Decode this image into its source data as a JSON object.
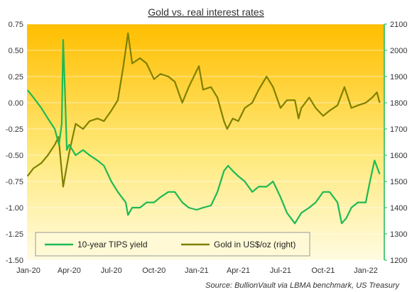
{
  "chart_data": {
    "type": "line",
    "title": "Gold vs. real interest rates",
    "source": "Source: BullionVault via LBMA benchmark, US Treasury",
    "x_ticks": [
      "Jan-20",
      "Apr-20",
      "Jul-20",
      "Oct-20",
      "Jan-21",
      "Apr-21",
      "Jul-21",
      "Oct-21",
      "Jan-22"
    ],
    "y_left": {
      "ticks": [
        "0.75",
        "0.50",
        "0.25",
        "0.00",
        "-0.25",
        "-0.50",
        "-0.75",
        "-1.00",
        "-1.25",
        "-1.50"
      ],
      "ylim": [
        -1.5,
        0.75
      ]
    },
    "y_right": {
      "ticks": [
        "2100",
        "2000",
        "1900",
        "1800",
        "1700",
        "1600",
        "1500",
        "1400",
        "1300",
        "1200"
      ],
      "ylim": [
        1200,
        2100
      ]
    },
    "legend": {
      "placement": "bottom-left"
    },
    "series": [
      {
        "name": "10-year TIPS yield",
        "axis": "left",
        "color": "#1db954",
        "x": [
          "2020-01-02",
          "2020-01-15",
          "2020-02-01",
          "2020-02-15",
          "2020-03-01",
          "2020-03-10",
          "2020-03-16",
          "2020-03-19",
          "2020-03-23",
          "2020-03-27",
          "2020-04-01",
          "2020-04-15",
          "2020-05-01",
          "2020-05-15",
          "2020-06-01",
          "2020-06-15",
          "2020-07-01",
          "2020-07-15",
          "2020-08-01",
          "2020-08-06",
          "2020-08-15",
          "2020-09-01",
          "2020-09-15",
          "2020-10-01",
          "2020-10-15",
          "2020-11-01",
          "2020-11-15",
          "2020-12-01",
          "2020-12-15",
          "2021-01-01",
          "2021-01-15",
          "2021-02-01",
          "2021-02-15",
          "2021-03-01",
          "2021-03-10",
          "2021-03-20",
          "2021-04-01",
          "2021-04-15",
          "2021-05-01",
          "2021-05-15",
          "2021-06-01",
          "2021-06-15",
          "2021-07-01",
          "2021-07-15",
          "2021-08-01",
          "2021-08-15",
          "2021-09-01",
          "2021-09-15",
          "2021-10-01",
          "2021-10-15",
          "2021-11-01",
          "2021-11-10",
          "2021-11-20",
          "2021-12-01",
          "2021-12-15",
          "2022-01-01",
          "2022-01-10",
          "2022-01-20",
          "2022-01-31"
        ],
        "values": [
          0.12,
          0.05,
          -0.05,
          -0.15,
          -0.25,
          -0.4,
          -0.2,
          0.6,
          0.1,
          -0.45,
          -0.4,
          -0.5,
          -0.45,
          -0.5,
          -0.55,
          -0.6,
          -0.75,
          -0.85,
          -0.95,
          -1.07,
          -1.0,
          -1.0,
          -0.95,
          -0.95,
          -0.9,
          -0.85,
          -0.85,
          -0.95,
          -1.0,
          -1.02,
          -1.0,
          -0.98,
          -0.85,
          -0.65,
          -0.6,
          -0.65,
          -0.7,
          -0.75,
          -0.85,
          -0.8,
          -0.8,
          -0.75,
          -0.9,
          -1.05,
          -1.15,
          -1.05,
          -1.0,
          -0.95,
          -0.85,
          -0.85,
          -0.95,
          -1.15,
          -1.1,
          -1.0,
          -0.95,
          -0.95,
          -0.75,
          -0.55,
          -0.68
        ]
      },
      {
        "name": "Gold in US$/oz (right)",
        "axis": "right",
        "color": "#808000",
        "x": [
          "2020-01-02",
          "2020-01-15",
          "2020-02-01",
          "2020-02-15",
          "2020-03-01",
          "2020-03-09",
          "2020-03-19",
          "2020-04-01",
          "2020-04-15",
          "2020-05-01",
          "2020-05-15",
          "2020-06-01",
          "2020-06-15",
          "2020-07-01",
          "2020-07-15",
          "2020-07-27",
          "2020-08-06",
          "2020-08-15",
          "2020-09-01",
          "2020-09-15",
          "2020-10-01",
          "2020-10-15",
          "2020-11-01",
          "2020-11-15",
          "2020-12-01",
          "2020-12-15",
          "2021-01-06",
          "2021-01-15",
          "2021-02-01",
          "2021-02-15",
          "2021-03-01",
          "2021-03-08",
          "2021-03-20",
          "2021-04-01",
          "2021-04-15",
          "2021-05-01",
          "2021-05-15",
          "2021-06-01",
          "2021-06-15",
          "2021-07-01",
          "2021-07-15",
          "2021-08-01",
          "2021-08-09",
          "2021-08-15",
          "2021-09-01",
          "2021-09-15",
          "2021-10-01",
          "2021-10-15",
          "2021-11-01",
          "2021-11-16",
          "2021-12-01",
          "2021-12-15",
          "2022-01-01",
          "2022-01-15",
          "2022-01-25",
          "2022-01-31"
        ],
        "values": [
          1520,
          1550,
          1570,
          1600,
          1640,
          1670,
          1480,
          1610,
          1720,
          1700,
          1730,
          1740,
          1730,
          1770,
          1810,
          1940,
          2065,
          1950,
          1970,
          1950,
          1890,
          1910,
          1900,
          1880,
          1800,
          1860,
          1940,
          1850,
          1860,
          1820,
          1730,
          1700,
          1740,
          1730,
          1780,
          1800,
          1850,
          1900,
          1860,
          1780,
          1810,
          1810,
          1740,
          1780,
          1820,
          1780,
          1750,
          1770,
          1790,
          1860,
          1780,
          1790,
          1800,
          1820,
          1840,
          1800
        ]
      }
    ]
  }
}
